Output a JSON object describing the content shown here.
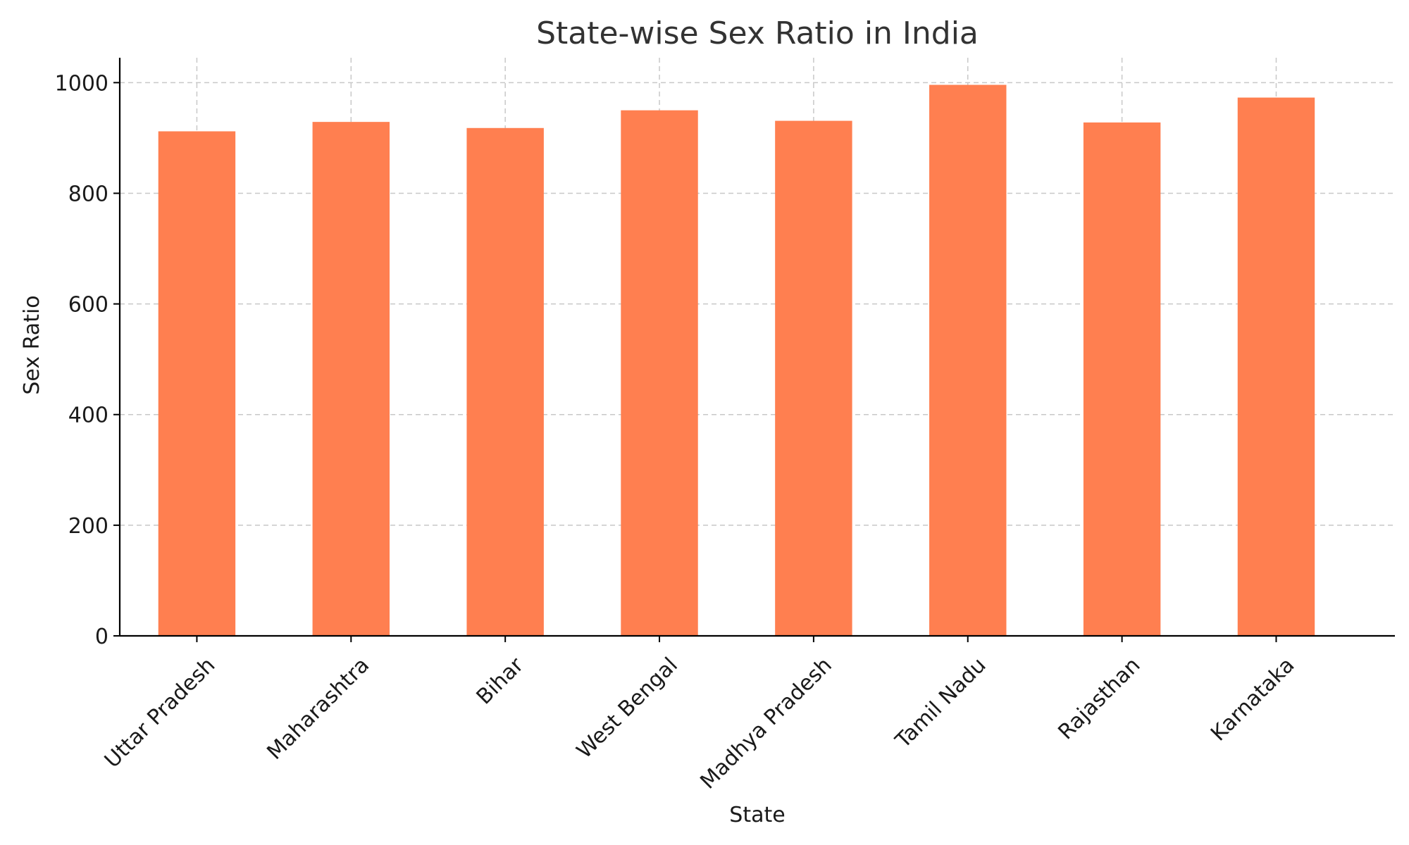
{
  "chart_data": {
    "type": "bar",
    "title": "State-wise Sex Ratio in India",
    "xlabel": "State",
    "ylabel": "Sex Ratio",
    "categories": [
      "Uttar Pradesh",
      "Maharashtra",
      "Bihar",
      "West Bengal",
      "Madhya Pradesh",
      "Tamil Nadu",
      "Rajasthan",
      "Karnataka"
    ],
    "values": [
      912,
      929,
      918,
      950,
      931,
      996,
      928,
      973
    ],
    "ylim": [
      0,
      1045
    ],
    "yticks": [
      0,
      200,
      400,
      600,
      800,
      1000
    ],
    "grid": true,
    "legend": "none",
    "bar_color": "#ff7f50"
  }
}
